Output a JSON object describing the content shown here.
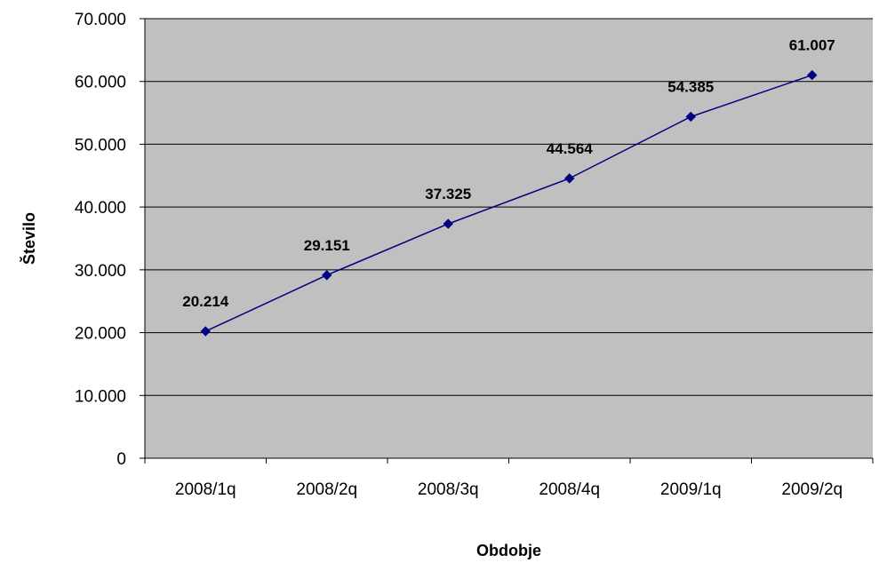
{
  "chart_data": {
    "type": "line",
    "title": "",
    "xlabel": "Obdobje",
    "ylabel": "Število",
    "categories": [
      "2008/1q",
      "2008/2q",
      "2008/3q",
      "2008/4q",
      "2009/1q",
      "2009/2q"
    ],
    "series": [
      {
        "values": [
          20214,
          29151,
          37325,
          44564,
          54385,
          61007
        ],
        "data_labels": [
          "20.214",
          "29.151",
          "37.325",
          "44.564",
          "54.385",
          "61.007"
        ]
      }
    ],
    "ylim": [
      0,
      70000
    ],
    "yticks": [
      0,
      10000,
      20000,
      30000,
      40000,
      50000,
      60000,
      70000
    ],
    "ytick_labels": [
      "0",
      "10.000",
      "20.000",
      "30.000",
      "40.000",
      "50.000",
      "60.000",
      "70.000"
    ],
    "grid": true,
    "legend": "none",
    "colors": {
      "plot_background": "#c0c0c0",
      "gridline": "#000000",
      "series_line": "#000080",
      "marker": "#000080"
    },
    "marker": "diamond"
  }
}
